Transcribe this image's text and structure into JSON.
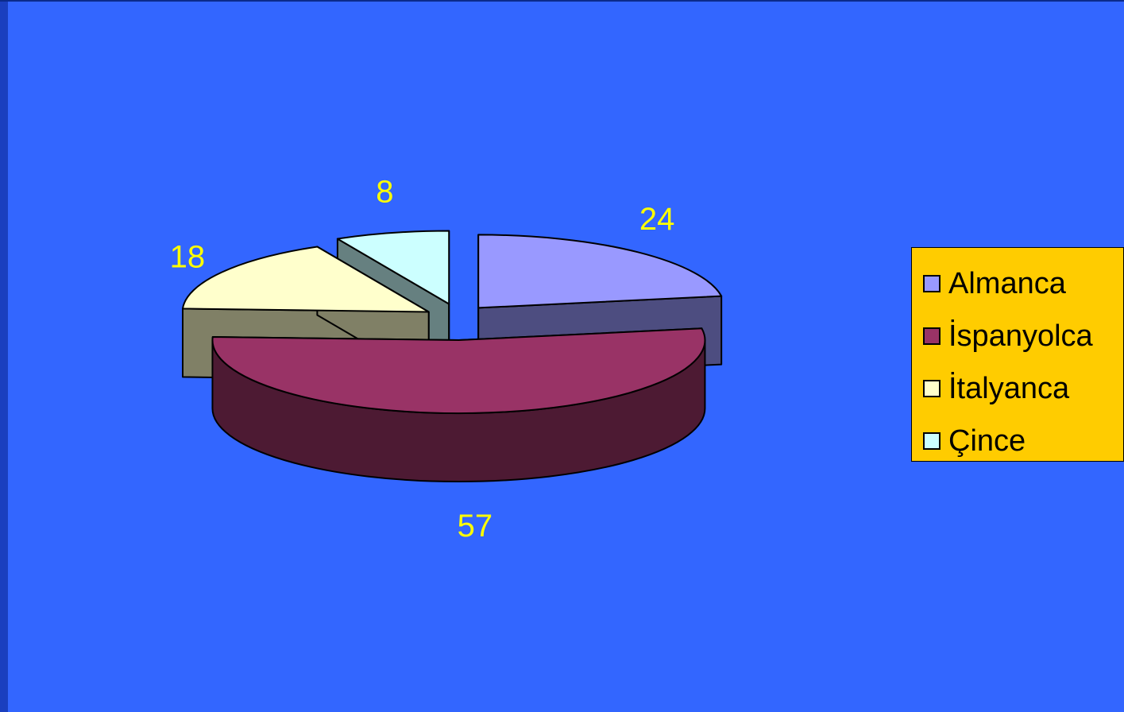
{
  "chart_data": {
    "type": "pie",
    "style": "3d-exploded",
    "categories": [
      "Almanca",
      "İspanyolca",
      "İtalyanca",
      "Çince"
    ],
    "values": [
      24,
      57,
      18,
      8
    ],
    "colors": [
      "#9999ff",
      "#993366",
      "#ffffcc",
      "#ccffff"
    ],
    "side_colors": [
      "#4d4d80",
      "#4d1a33",
      "#808066",
      "#668080"
    ],
    "label_color": "#ffff00",
    "legend": {
      "position": "right",
      "background": "#ffcc00",
      "entries": [
        "Almanca",
        "İspanyolca",
        "İtalyanca",
        "Çince"
      ]
    }
  },
  "background": "#3366ff"
}
